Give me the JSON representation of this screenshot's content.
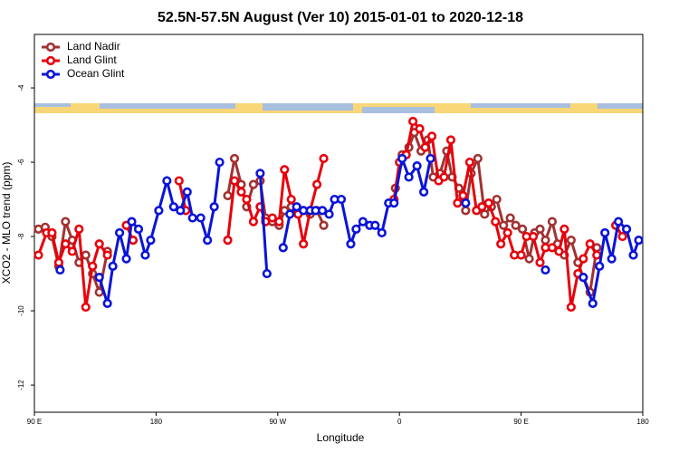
{
  "chart_data": {
    "type": "line",
    "title": "52.5N-57.5N August (Ver 10)   2015-01-01 to 2020-12-18",
    "x_label": "Longitude",
    "y_label": "XCO2 - MLO trend (ppm)",
    "xlim": [
      90,
      540
    ],
    "ylim": [
      -12.73,
      -2.56
    ],
    "xticks": [
      {
        "value": 90,
        "label": "90 E"
      },
      180,
      {
        "value": 270,
        "label": "90 W"
      },
      {
        "value": 360,
        "label": "0"
      },
      {
        "value": 450,
        "label": "90 E"
      },
      {
        "value": 540,
        "label": "180"
      }
    ],
    "yticks": [
      -12,
      -10,
      -8,
      -6,
      -4
    ],
    "legend": "upper left",
    "series": [
      {
        "name": "Land Nadir",
        "color": "#a23232",
        "x": [
          93,
          98,
          103,
          108,
          113,
          118,
          123,
          128,
          133,
          138,
          144,
          null,
          233,
          238,
          243,
          247,
          252,
          257,
          261,
          266,
          271,
          275,
          280,
          285,
          289,
          294,
          299,
          304,
          null,
          357,
          362,
          367,
          371,
          376,
          381,
          385,
          390,
          395,
          399,
          404,
          409,
          413,
          418,
          423,
          428,
          432,
          437,
          442,
          446,
          451,
          456,
          460,
          464,
          468,
          473,
          477,
          482,
          487,
          492,
          496,
          501,
          506
        ],
        "values": [
          -7.8,
          -7.75,
          -8.0,
          -8.8,
          -7.6,
          -8.1,
          -8.7,
          -8.5,
          -9.0,
          -9.5,
          -8.4,
          null,
          -6.9,
          -5.9,
          -6.6,
          -7.2,
          -6.6,
          -6.5,
          -7.5,
          -7.6,
          -7.7,
          -7.3,
          -7.2,
          -7.4,
          -7.3,
          -7.4,
          -7.3,
          -7.7,
          null,
          -6.7,
          -5.8,
          -5.6,
          -5.2,
          -5.7,
          -5.4,
          -6.4,
          -6.3,
          -5.7,
          -6.4,
          -6.7,
          -7.3,
          -6.3,
          -5.9,
          -7.4,
          -7.2,
          -7.0,
          -7.7,
          -7.5,
          -7.7,
          -7.8,
          -8.6,
          -7.9,
          -7.8,
          -8.1,
          -7.6,
          -8.2,
          -8.5,
          -8.1,
          -8.7,
          -9.1,
          -9.5,
          -8.3
        ]
      },
      {
        "name": "Land Glint",
        "color": "#e8000b",
        "x": [
          93,
          99,
          103,
          108,
          113,
          118,
          123,
          128,
          133,
          138,
          144,
          null,
          158,
          163,
          null,
          197,
          202,
          null,
          233,
          238,
          243,
          247,
          252,
          257,
          261,
          266,
          271,
          275,
          280,
          285,
          289,
          294,
          299,
          304,
          null,
          356,
          360,
          365,
          370,
          375,
          379,
          384,
          389,
          393,
          398,
          403,
          407,
          412,
          417,
          421,
          426,
          431,
          435,
          440,
          445,
          450,
          454,
          459,
          464,
          468,
          473,
          478,
          482,
          487,
          492,
          496,
          501,
          506,
          null,
          520,
          525
        ],
        "values": [
          -8.5,
          -7.9,
          -7.9,
          -8.7,
          -8.2,
          -8.4,
          -7.8,
          -9.9,
          -8.8,
          -8.2,
          -8.5,
          null,
          -7.7,
          -8.1,
          null,
          -6.5,
          -7.3,
          null,
          -8.1,
          -6.5,
          -6.8,
          -7.0,
          -7.6,
          -7.2,
          -7.6,
          -7.5,
          -7.6,
          -6.2,
          -7.0,
          -7.4,
          -8.2,
          -7.3,
          -6.6,
          -5.9,
          null,
          -7.0,
          -6.0,
          -5.8,
          -4.9,
          -5.1,
          -5.6,
          -5.3,
          -6.5,
          -6.4,
          -5.4,
          -7.1,
          -6.9,
          -6.0,
          -7.3,
          -7.2,
          -7.1,
          -7.6,
          -8.2,
          -7.9,
          -8.5,
          -8.5,
          -8.0,
          -8.0,
          -8.7,
          -8.3,
          -8.3,
          -8.4,
          -7.8,
          -9.9,
          -9.0,
          -8.6,
          -8.2,
          -8.5,
          null,
          -7.7,
          -8.0
        ]
      },
      {
        "name": "Ocean Glint",
        "color": "#0a14d8",
        "x": [
          109,
          null,
          138,
          144,
          148,
          153,
          158,
          162,
          167,
          172,
          176,
          182,
          188,
          193,
          198,
          203,
          207,
          213,
          218,
          223,
          227,
          null,
          257,
          262,
          null,
          274,
          279,
          284,
          289,
          294,
          298,
          303,
          308,
          312,
          317,
          324,
          328,
          333,
          338,
          342,
          347,
          352,
          356,
          362,
          367,
          373,
          378,
          383,
          null,
          409,
          null,
          468,
          null,
          496,
          503,
          508,
          512,
          517,
          522,
          528,
          533,
          537
        ],
        "values": [
          -8.9,
          null,
          -9.1,
          -9.8,
          -8.8,
          -7.9,
          -8.6,
          -7.6,
          -7.8,
          -8.5,
          -8.1,
          -7.3,
          -6.5,
          -7.2,
          -7.3,
          -6.8,
          -7.5,
          -7.5,
          -8.1,
          -7.2,
          -6.0,
          null,
          -6.3,
          -9.0,
          null,
          -8.3,
          -7.4,
          -7.2,
          -7.3,
          -7.3,
          -7.3,
          -7.3,
          -7.4,
          -7.0,
          -7.0,
          -8.2,
          -7.8,
          -7.6,
          -7.7,
          -7.7,
          -7.9,
          -7.1,
          -7.1,
          -5.9,
          -6.4,
          -6.1,
          -6.8,
          -5.9,
          null,
          -7.1,
          null,
          -8.9,
          null,
          -9.1,
          -9.8,
          -8.8,
          -7.9,
          -8.6,
          -7.6,
          -7.8,
          -8.5,
          -8.1
        ]
      }
    ]
  }
}
